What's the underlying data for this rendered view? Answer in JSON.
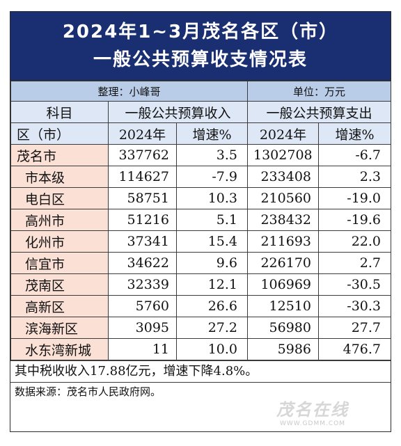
{
  "title": {
    "line1": "2024年1~3月茂名各区（市）",
    "line2": "一般公共预算收支情况表"
  },
  "meta": {
    "compiler": "整理：小峰哥",
    "unit": "单位：万元"
  },
  "header": {
    "subject": "科目",
    "revenue": "一般公共预算收入",
    "expenditure": "一般公共预算支出",
    "district": "区（市）",
    "year_rev": "2024年",
    "growth_rev": "增速%",
    "year_exp": "2024年",
    "growth_exp": "增速%"
  },
  "rows": [
    {
      "name": "茂名市",
      "rev": "337762",
      "rev_growth": "3.5",
      "exp": "1302708",
      "exp_growth": "-6.7"
    },
    {
      "name": "市本级",
      "rev": "114627",
      "rev_growth": "-7.9",
      "exp": "233408",
      "exp_growth": "2.3"
    },
    {
      "name": "电白区",
      "rev": "58751",
      "rev_growth": "10.3",
      "exp": "210560",
      "exp_growth": "-19.0"
    },
    {
      "name": "高州市",
      "rev": "51216",
      "rev_growth": "5.1",
      "exp": "238432",
      "exp_growth": "-19.6"
    },
    {
      "name": "化州市",
      "rev": "37341",
      "rev_growth": "15.4",
      "exp": "211693",
      "exp_growth": "22.0"
    },
    {
      "name": "信宜市",
      "rev": "34622",
      "rev_growth": "9.6",
      "exp": "226170",
      "exp_growth": "2.7"
    },
    {
      "name": "茂南区",
      "rev": "32339",
      "rev_growth": "12.1",
      "exp": "106969",
      "exp_growth": "-30.5"
    },
    {
      "name": "高新区",
      "rev": "5760",
      "rev_growth": "26.6",
      "exp": "12510",
      "exp_growth": "-30.3"
    },
    {
      "name": "滨海新区",
      "rev": "3095",
      "rev_growth": "27.2",
      "exp": "56980",
      "exp_growth": "27.7"
    },
    {
      "name": "水东湾新城",
      "rev": "11",
      "rev_growth": "10.0",
      "exp": "5986",
      "exp_growth": "476.7"
    }
  ],
  "note": "其中税收收入17.88亿元，增速下降4.8%。",
  "source": "数据来源：茂名市人民政府网。",
  "watermark": {
    "logo": "茂名在线",
    "url": "WWW.GDMM.COM"
  }
}
